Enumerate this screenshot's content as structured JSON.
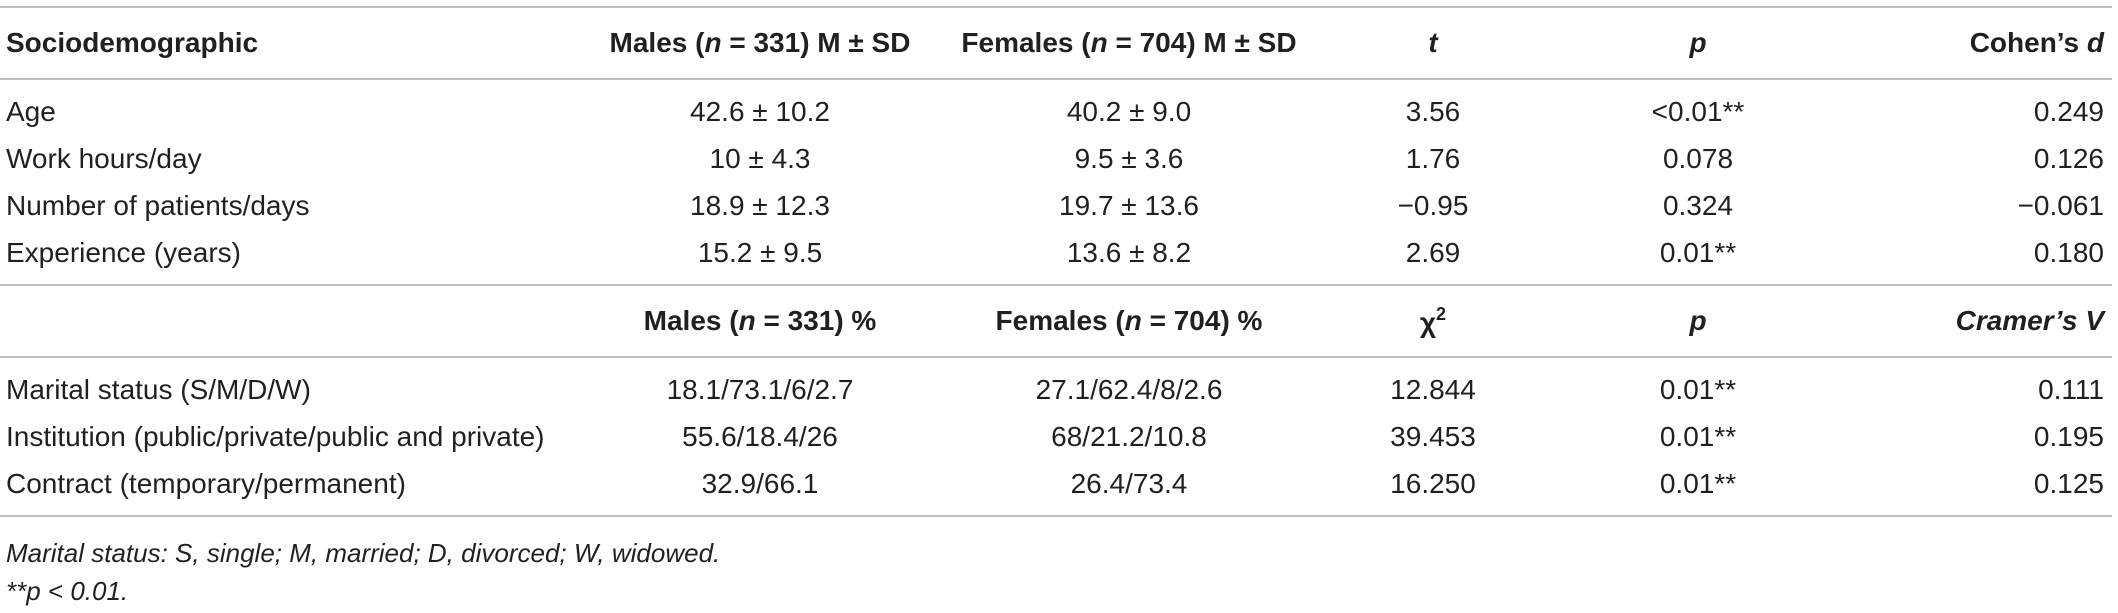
{
  "table": {
    "header1": {
      "c0": "Sociodemographic",
      "c1": [
        "Males (",
        "n",
        " = 331) M ± SD"
      ],
      "c2": [
        "Females (",
        "n",
        " = 704) M ± SD"
      ],
      "c3": "t",
      "c4": "p",
      "c5": [
        "Cohen’s ",
        "d"
      ]
    },
    "rows1": [
      {
        "label": "Age",
        "males": "42.6 ± 10.2",
        "females": "40.2 ± 9.0",
        "stat": "3.56",
        "p": "<0.01**",
        "effect": "0.249"
      },
      {
        "label": "Work hours/day",
        "males": "10 ± 4.3",
        "females": "9.5 ± 3.6",
        "stat": "1.76",
        "p": "0.078",
        "effect": "0.126"
      },
      {
        "label": "Number of patients/days",
        "males": "18.9 ± 12.3",
        "females": "19.7 ± 13.6",
        "stat": "−0.95",
        "p": "0.324",
        "effect": "−0.061"
      },
      {
        "label": "Experience (years)",
        "males": "15.2 ± 9.5",
        "females": "13.6 ± 8.2",
        "stat": "2.69",
        "p": "0.01**",
        "effect": "0.180"
      }
    ],
    "header2": {
      "c1": [
        "Males (",
        "n",
        " = 331) %"
      ],
      "c2": [
        "Females (",
        "n",
        " = 704) %"
      ],
      "c3": [
        "χ",
        "2"
      ],
      "c4": "p",
      "c5": "Cramer’s V"
    },
    "rows2": [
      {
        "label": "Marital status (S/M/D/W)",
        "males": "18.1/73.1/6/2.7",
        "females": "27.1/62.4/8/2.6",
        "stat": "12.844",
        "p": "0.01**",
        "effect": "0.111"
      },
      {
        "label": "Institution (public/private/public and private)",
        "males": "55.6/18.4/26",
        "females": "68/21.2/10.8",
        "stat": "39.453",
        "p": "0.01**",
        "effect": "0.195"
      },
      {
        "label": "Contract (temporary/permanent)",
        "males": "32.9/66.1",
        "females": "26.4/73.4",
        "stat": "16.250",
        "p": "0.01**",
        "effect": "0.125"
      }
    ]
  },
  "notes": {
    "line1": "Marital status: S, single; M, married; D, divorced; W, widowed.",
    "line2": "**p < 0.01."
  }
}
